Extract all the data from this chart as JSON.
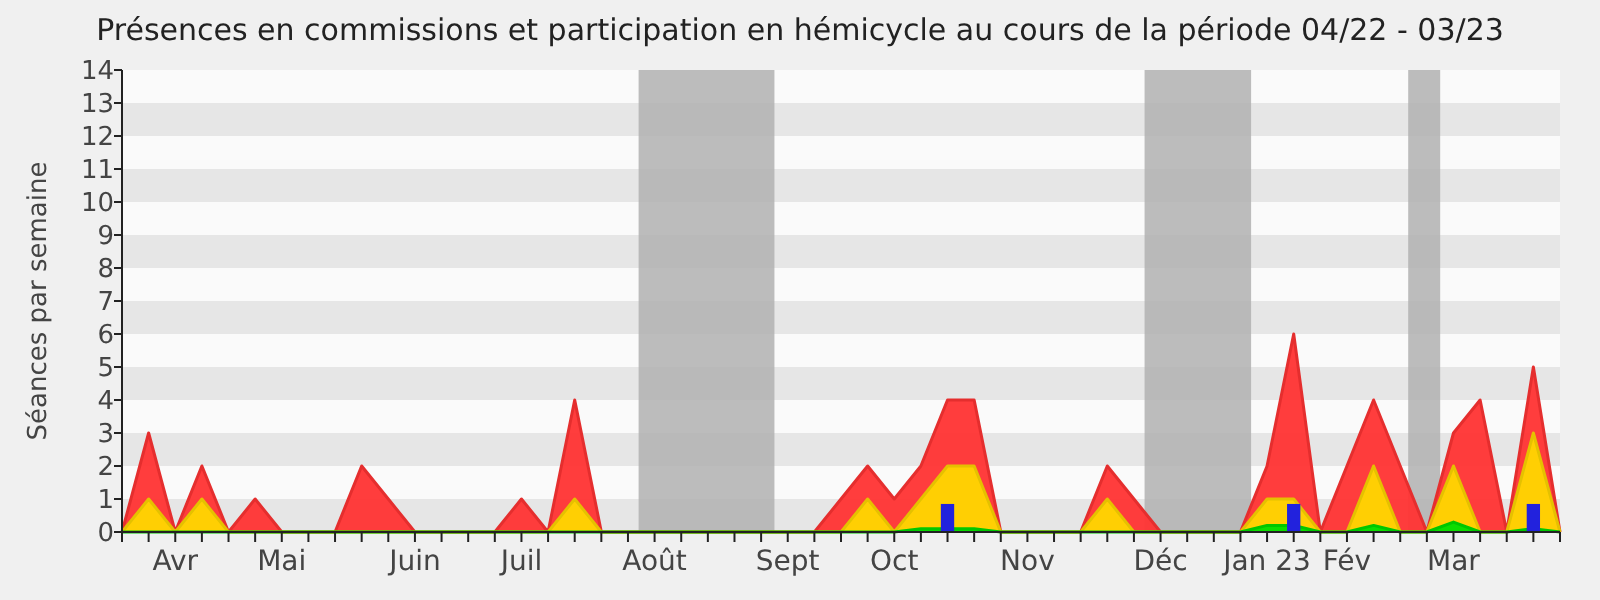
{
  "chart_data": {
    "type": "area",
    "title": "Présences en commissions et participation en hémicycle au cours de la période 04/22 - 03/23",
    "ylabel": "Séances par semaine",
    "categories": [
      null,
      null,
      "Avr",
      null,
      null,
      null,
      "Mai",
      null,
      null,
      null,
      null,
      "Juin",
      null,
      null,
      null,
      "Juil",
      null,
      null,
      null,
      null,
      "Août",
      null,
      null,
      null,
      null,
      "Sept",
      null,
      null,
      null,
      "Oct",
      null,
      null,
      null,
      null,
      "Nov",
      null,
      null,
      null,
      null,
      "Déc",
      null,
      null,
      null,
      "Jan 23",
      null,
      null,
      "Fév",
      null,
      null,
      null,
      "Mar",
      null,
      null,
      null,
      null
    ],
    "series": [
      {
        "color": "#ff3333",
        "values": [
          0,
          3,
          0,
          2,
          0,
          1,
          0,
          0,
          0,
          2,
          1,
          0,
          0,
          0,
          0,
          1,
          0,
          4,
          0,
          0,
          0,
          0,
          0,
          0,
          0,
          0,
          0,
          1,
          2,
          1,
          2,
          4,
          4,
          0,
          0,
          0,
          0,
          2,
          1,
          0,
          0,
          0,
          0,
          2,
          6,
          0,
          2,
          4,
          2,
          0,
          3,
          4,
          0,
          5,
          0
        ]
      },
      {
        "color": "#ffd700",
        "values": [
          0,
          1,
          0,
          1,
          0,
          0,
          0,
          0,
          0,
          0,
          0,
          0,
          0,
          0,
          0,
          0,
          0,
          1,
          0,
          0,
          0,
          0,
          0,
          0,
          0,
          0,
          0,
          0,
          1,
          0,
          1,
          2,
          2,
          0,
          0,
          0,
          0,
          1,
          0,
          0,
          0,
          0,
          0,
          1,
          1,
          0,
          0,
          2,
          0,
          0,
          2,
          0,
          0,
          3,
          0
        ]
      },
      {
        "color": "#00dd00",
        "values": [
          0,
          0,
          0,
          0,
          0,
          0,
          0,
          0,
          0,
          0,
          0,
          0,
          0,
          0,
          0,
          0,
          0,
          0,
          0,
          0,
          0,
          0,
          0,
          0,
          0,
          0,
          0,
          0,
          0,
          0,
          0.1,
          0.1,
          0.1,
          0,
          0,
          0,
          0,
          0,
          0,
          0,
          0,
          0,
          0,
          0.2,
          0.2,
          0,
          0,
          0.2,
          0,
          0,
          0.3,
          0,
          0,
          0.1,
          0
        ]
      },
      {
        "type": "bar",
        "color": "#2222dd",
        "values": [
          null,
          null,
          null,
          null,
          null,
          null,
          null,
          null,
          null,
          null,
          null,
          null,
          null,
          null,
          null,
          null,
          null,
          null,
          null,
          null,
          null,
          null,
          null,
          null,
          null,
          null,
          null,
          null,
          null,
          null,
          null,
          0.85,
          null,
          null,
          null,
          null,
          null,
          null,
          null,
          null,
          null,
          null,
          null,
          null,
          0.85,
          null,
          null,
          null,
          null,
          null,
          null,
          null,
          null,
          0.85,
          null
        ]
      }
    ],
    "ylim": [
      0,
      14
    ],
    "yticks": [
      0,
      1,
      2,
      3,
      4,
      5,
      6,
      7,
      8,
      9,
      10,
      11,
      12,
      13,
      14
    ]
  }
}
